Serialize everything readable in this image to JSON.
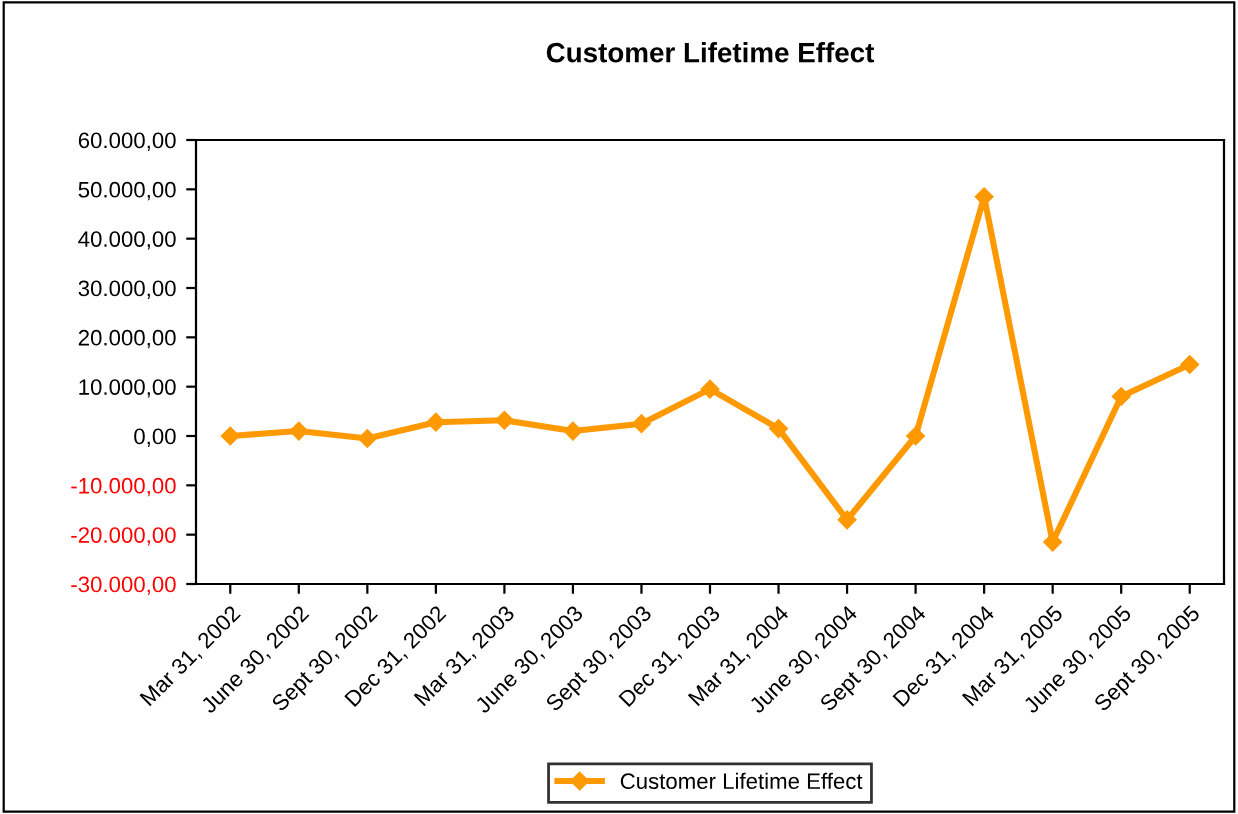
{
  "chart_data": {
    "type": "line",
    "title": "Customer Lifetime Effect",
    "categories": [
      "Mar 31, 2002",
      "June 30, 2002",
      "Sept 30, 2002",
      "Dec 31, 2002",
      "Mar 31, 2003",
      "June 30, 2003",
      "Sept 30, 2003",
      "Dec 31, 2003",
      "Mar 31, 2004",
      "June 30, 2004",
      "Sept 30, 2004",
      "Dec 31, 2004",
      "Mar 31, 2005",
      "June 30, 2005",
      "Sept 30, 2005"
    ],
    "series": [
      {
        "name": "Customer Lifetime Effect",
        "color": "#ff9900",
        "values": [
          0,
          1000,
          -500,
          2800,
          3200,
          1000,
          2500,
          9500,
          1500,
          -17000,
          0,
          48500,
          -21500,
          8000,
          14500
        ]
      }
    ],
    "ylim": [
      -30000,
      60000
    ],
    "yticks": [
      {
        "value": -30000,
        "label": "-30.000,00"
      },
      {
        "value": -20000,
        "label": "-20.000,00"
      },
      {
        "value": -10000,
        "label": "-10.000,00"
      },
      {
        "value": 0,
        "label": "0,00"
      },
      {
        "value": 10000,
        "label": "10.000,00"
      },
      {
        "value": 20000,
        "label": "20.000,00"
      },
      {
        "value": 30000,
        "label": "30.000,00"
      },
      {
        "value": 40000,
        "label": "40.000,00"
      },
      {
        "value": 50000,
        "label": "50.000,00"
      },
      {
        "value": 60000,
        "label": "60.000,00"
      }
    ],
    "marker": "diamond",
    "line_style": "solid",
    "grid": false,
    "legend": "bottom"
  }
}
